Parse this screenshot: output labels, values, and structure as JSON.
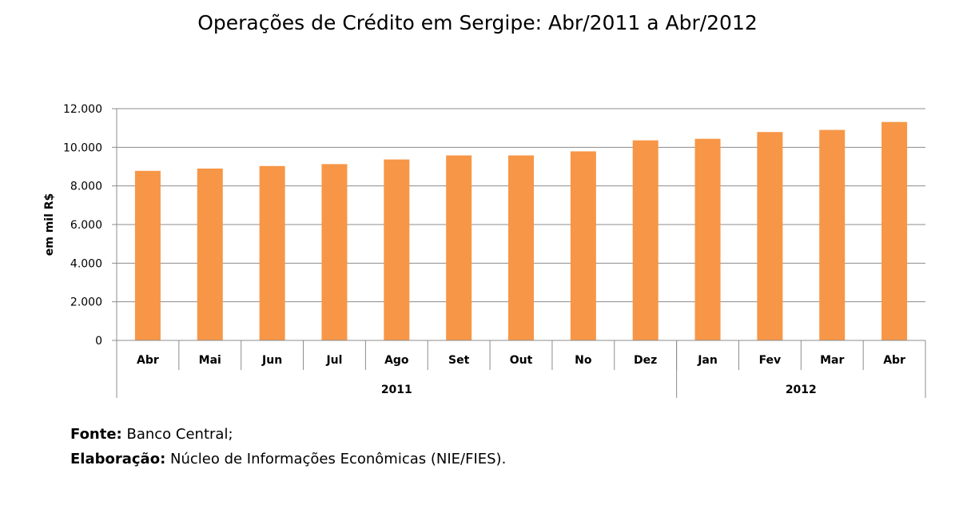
{
  "chart_data": {
    "type": "bar",
    "title": "Operações de Crédito em Sergipe: Abr/2011 a Abr/2012",
    "ylabel": "em mil R$",
    "xlabel": "",
    "ylim": [
      0,
      12000
    ],
    "yticks": [
      0,
      2000,
      4000,
      6000,
      8000,
      10000,
      12000
    ],
    "ytick_labels": [
      "0",
      "2.000",
      "4.000",
      "6.000",
      "8.000",
      "10.000",
      "12.000"
    ],
    "categories": [
      "Abr",
      "Mai",
      "Jun",
      "Jul",
      "Ago",
      "Set",
      "Out",
      "No",
      "Dez",
      "Jan",
      "Fev",
      "Mar",
      "Abr"
    ],
    "values": [
      8780,
      8900,
      9030,
      9130,
      9370,
      9580,
      9580,
      9790,
      10360,
      10440,
      10790,
      10900,
      11310
    ],
    "groups": [
      {
        "label": "2011",
        "count": 9
      },
      {
        "label": "2012",
        "count": 4
      }
    ],
    "bar_color": "#F79646",
    "gridlines": true
  },
  "footer": {
    "source_label": "Fonte:",
    "source_value": " Banco Central;",
    "elab_label": "Elaboração:",
    "elab_value": " Núcleo de Informações Econômicas (NIE/FIES)."
  }
}
